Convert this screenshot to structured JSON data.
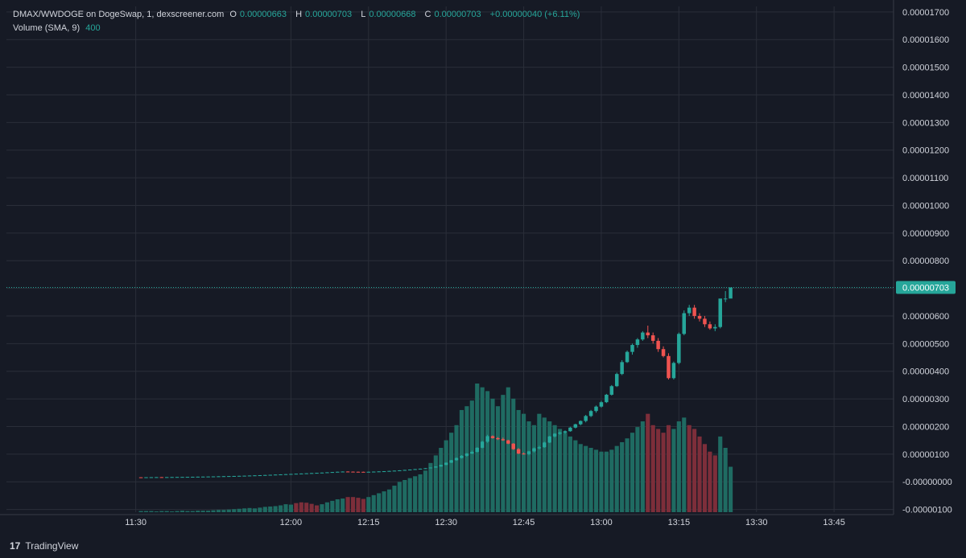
{
  "legend": {
    "title": "DMAX/WWDOGE on DogeSwap, 1, dexscreener.com",
    "o_label": "O",
    "o_value": "0.00000663",
    "h_label": "H",
    "h_value": "0.00000703",
    "l_label": "L",
    "l_value": "0.00000668",
    "c_label": "C",
    "c_value": "0.00000703",
    "change": "+0.00000040 (+6.11%)",
    "volume_label": "Volume (SMA, 9)",
    "volume_value": "400"
  },
  "footer": {
    "brand": "TradingView",
    "logo_icon": "tradingview-logo-icon"
  },
  "colors": {
    "bg": "#161a25",
    "up": "#26a69a",
    "down": "#ef5350",
    "grid": "#2a2e39",
    "text": "#d1d4dc",
    "up_vol": "#1f6b62",
    "down_vol": "#7d2e3a"
  },
  "chart_data": {
    "type": "candlestick",
    "y_tick_labels": [
      "0.00001700",
      "0.00001600",
      "0.00001500",
      "0.00001400",
      "0.00001300",
      "0.00001200",
      "0.00001100",
      "0.00001000",
      "0.00000900",
      "0.00000800",
      "0.00000700",
      "0.00000600",
      "0.00000500",
      "0.00000400",
      "0.00000300",
      "0.00000200",
      "0.00000100",
      "-0.00000000",
      "-0.00000100"
    ],
    "y_tick_values": [
      1.7e-05,
      1.6e-05,
      1.5e-05,
      1.4e-05,
      1.3e-05,
      1.2e-05,
      1.1e-05,
      1e-05,
      9e-06,
      8e-06,
      7e-06,
      6e-06,
      5e-06,
      4e-06,
      3e-06,
      2e-06,
      1e-06,
      0,
      -1e-06
    ],
    "ylim": [
      -1.1e-06,
      1.72e-05
    ],
    "x_tick_labels": [
      "11:30",
      "12:00",
      "12:15",
      "12:30",
      "12:45",
      "13:00",
      "13:15",
      "13:30",
      "13:45"
    ],
    "x_tick_values": [
      690,
      720,
      735,
      750,
      765,
      780,
      795,
      810,
      825
    ],
    "xlim": [
      665,
      836.5
    ],
    "last_price_label": "0.00000703",
    "last_price": 7.03e-06,
    "grid": true,
    "ohlc": [
      [
        691,
        1.62e-07,
        1.65e-07,
        1.55e-07,
        1.6e-07
      ],
      [
        692,
        1.6e-07,
        1.66e-07,
        1.58e-07,
        1.64e-07
      ],
      [
        693,
        1.64e-07,
        1.68e-07,
        1.6e-07,
        1.66e-07
      ],
      [
        694,
        1.66e-07,
        1.7e-07,
        1.62e-07,
        1.68e-07
      ],
      [
        695,
        1.68e-07,
        1.71e-07,
        1.63e-07,
        1.65e-07
      ],
      [
        696,
        1.65e-07,
        1.7e-07,
        1.63e-07,
        1.69e-07
      ],
      [
        697,
        1.69e-07,
        1.74e-07,
        1.66e-07,
        1.72e-07
      ],
      [
        698,
        1.72e-07,
        1.76e-07,
        1.69e-07,
        1.74e-07
      ],
      [
        699,
        1.74e-07,
        1.78e-07,
        1.71e-07,
        1.76e-07
      ],
      [
        700,
        1.76e-07,
        1.8e-07,
        1.73e-07,
        1.78e-07
      ],
      [
        701,
        1.78e-07,
        1.83e-07,
        1.75e-07,
        1.81e-07
      ],
      [
        702,
        1.81e-07,
        1.86e-07,
        1.78e-07,
        1.84e-07
      ],
      [
        703,
        1.84e-07,
        1.89e-07,
        1.81e-07,
        1.87e-07
      ],
      [
        704,
        1.87e-07,
        1.92e-07,
        1.84e-07,
        1.9e-07
      ],
      [
        705,
        1.9e-07,
        1.96e-07,
        1.87e-07,
        1.94e-07
      ],
      [
        706,
        1.94e-07,
        2e-07,
        1.9e-07,
        1.98e-07
      ],
      [
        707,
        1.98e-07,
        2.05e-07,
        1.95e-07,
        2.02e-07
      ],
      [
        708,
        2.02e-07,
        2.08e-07,
        1.99e-07,
        2.06e-07
      ],
      [
        709,
        2.06e-07,
        2.12e-07,
        2.03e-07,
        2.1e-07
      ],
      [
        710,
        2.1e-07,
        2.17e-07,
        2.07e-07,
        2.15e-07
      ],
      [
        711,
        2.15e-07,
        2.22e-07,
        2.12e-07,
        2.2e-07
      ],
      [
        712,
        2.2e-07,
        2.28e-07,
        2.17e-07,
        2.26e-07
      ],
      [
        713,
        2.26e-07,
        2.34e-07,
        2.22e-07,
        2.32e-07
      ],
      [
        714,
        2.32e-07,
        2.4e-07,
        2.28e-07,
        2.38e-07
      ],
      [
        715,
        2.38e-07,
        2.47e-07,
        2.34e-07,
        2.45e-07
      ],
      [
        716,
        2.45e-07,
        2.54e-07,
        2.4e-07,
        2.52e-07
      ],
      [
        717,
        2.52e-07,
        2.62e-07,
        2.48e-07,
        2.6e-07
      ],
      [
        718,
        2.6e-07,
        2.7e-07,
        2.56e-07,
        2.68e-07
      ],
      [
        719,
        2.68e-07,
        2.78e-07,
        2.63e-07,
        2.75e-07
      ],
      [
        720,
        2.75e-07,
        2.86e-07,
        2.7e-07,
        2.83e-07
      ],
      [
        721,
        2.83e-07,
        2.94e-07,
        2.78e-07,
        2.91e-07
      ],
      [
        722,
        2.91e-07,
        3.02e-07,
        2.86e-07,
        2.99e-07
      ],
      [
        723,
        2.99e-07,
        3.1e-07,
        2.93e-07,
        3.07e-07
      ],
      [
        724,
        3.07e-07,
        3.18e-07,
        3.01e-07,
        3.15e-07
      ],
      [
        725,
        3.15e-07,
        3.26e-07,
        3.1e-07,
        3.23e-07
      ],
      [
        726,
        3.23e-07,
        3.35e-07,
        3.18e-07,
        3.32e-07
      ],
      [
        727,
        3.32e-07,
        3.45e-07,
        3.27e-07,
        3.42e-07
      ],
      [
        728,
        3.42e-07,
        3.55e-07,
        3.37e-07,
        3.52e-07
      ],
      [
        729,
        3.52e-07,
        3.65e-07,
        3.47e-07,
        3.62e-07
      ],
      [
        730,
        3.62e-07,
        3.75e-07,
        3.57e-07,
        3.7e-07
      ],
      [
        731,
        3.7e-07,
        3.8e-07,
        3.6e-07,
        3.66e-07
      ],
      [
        732,
        3.66e-07,
        3.74e-07,
        3.58e-07,
        3.62e-07
      ],
      [
        733,
        3.62e-07,
        3.7e-07,
        3.55e-07,
        3.6e-07
      ],
      [
        734,
        3.6e-07,
        3.67e-07,
        3.52e-07,
        3.58e-07
      ],
      [
        735,
        3.58e-07,
        3.66e-07,
        3.52e-07,
        3.62e-07
      ],
      [
        736,
        3.62e-07,
        3.72e-07,
        3.56e-07,
        3.68e-07
      ],
      [
        737,
        3.68e-07,
        3.78e-07,
        3.62e-07,
        3.75e-07
      ],
      [
        738,
        3.75e-07,
        3.86e-07,
        3.69e-07,
        3.82e-07
      ],
      [
        739,
        3.82e-07,
        3.96e-07,
        3.76e-07,
        3.92e-07
      ],
      [
        740,
        3.92e-07,
        4.06e-07,
        3.86e-07,
        4.02e-07
      ],
      [
        741,
        4.02e-07,
        4.18e-07,
        3.96e-07,
        4.14e-07
      ],
      [
        742,
        4.14e-07,
        4.32e-07,
        4.08e-07,
        4.28e-07
      ],
      [
        743,
        4.28e-07,
        4.46e-07,
        4.22e-07,
        4.42e-07
      ],
      [
        744,
        4.42e-07,
        4.62e-07,
        4.36e-07,
        4.58e-07
      ],
      [
        745,
        4.58e-07,
        4.78e-07,
        4.52e-07,
        4.74e-07
      ],
      [
        746,
        4.74e-07,
        4.95e-07,
        4.68e-07,
        4.9e-07
      ],
      [
        747,
        4.9e-07,
        5.2e-07,
        4.85e-07,
        5.15e-07
      ],
      [
        748,
        5.15e-07,
        5.6e-07,
        5.1e-07,
        5.52e-07
      ],
      [
        749,
        5.52e-07,
        6.2e-07,
        5.45e-07,
        6.1e-07
      ],
      [
        750,
        6.1e-07,
        7e-07,
        6e-07,
        6.9e-07
      ],
      [
        751,
        6.9e-07,
        7.9e-07,
        6.8e-07,
        7.8e-07
      ],
      [
        752,
        7.8e-07,
        8.8e-07,
        7.6e-07,
        8.6e-07
      ],
      [
        753,
        8.6e-07,
        9.65e-07,
        8.4e-07,
        9.4e-07
      ],
      [
        754,
        9.4e-07,
        1.04e-06,
        9.05e-07,
        1.02e-06
      ],
      [
        755,
        1.02e-06,
        1.13e-06,
        1e-06,
        1.08e-06
      ],
      [
        756,
        1.08e-06,
        1.25e-06,
        1.06e-06,
        1.23e-06
      ],
      [
        757,
        1.23e-06,
        1.48e-06,
        1.21e-06,
        1.45e-06
      ],
      [
        758,
        1.45e-06,
        1.7e-06,
        1.41e-06,
        1.65e-06
      ],
      [
        759,
        1.65e-06,
        1.68e-06,
        1.56e-06,
        1.58e-06
      ],
      [
        760,
        1.58e-06,
        1.62e-06,
        1.51e-06,
        1.54e-06
      ],
      [
        761,
        1.54e-06,
        1.6e-06,
        1.48e-06,
        1.5e-06
      ],
      [
        762,
        1.5e-06,
        1.52e-06,
        1.36e-06,
        1.38e-06
      ],
      [
        763,
        1.38e-06,
        1.4e-06,
        1.15e-06,
        1.18e-06
      ],
      [
        764,
        1.18e-06,
        1.22e-06,
        1e-06,
        1.02e-06
      ],
      [
        765,
        1.02e-06,
        1.06e-06,
        9.8e-07,
        1e-06
      ],
      [
        766,
        1e-06,
        1.12e-06,
        9.6e-07,
        1.1e-06
      ],
      [
        767,
        1.1e-06,
        1.24e-06,
        1.06e-06,
        1.21e-06
      ],
      [
        768,
        1.21e-06,
        1.3e-06,
        1.17e-06,
        1.25e-06
      ],
      [
        769,
        1.25e-06,
        1.45e-06,
        1.23e-06,
        1.42e-06
      ],
      [
        770,
        1.42e-06,
        1.66e-06,
        1.4e-06,
        1.64e-06
      ],
      [
        771,
        1.64e-06,
        1.76e-06,
        1.6e-06,
        1.74e-06
      ],
      [
        772,
        1.74e-06,
        1.82e-06,
        1.7e-06,
        1.78e-06
      ],
      [
        773,
        1.78e-06,
        1.86e-06,
        1.73e-06,
        1.83e-06
      ],
      [
        774,
        1.83e-06,
        1.99e-06,
        1.81e-06,
        1.96e-06
      ],
      [
        775,
        1.96e-06,
        2.1e-06,
        1.93e-06,
        2.08e-06
      ],
      [
        776,
        2.08e-06,
        2.22e-06,
        2.04e-06,
        2.2e-06
      ],
      [
        777,
        2.2e-06,
        2.42e-06,
        2.15e-06,
        2.38e-06
      ],
      [
        778,
        2.38e-06,
        2.6e-06,
        2.34e-06,
        2.56e-06
      ],
      [
        779,
        2.56e-06,
        2.76e-06,
        2.5e-06,
        2.72e-06
      ],
      [
        780,
        2.72e-06,
        2.93e-06,
        2.68e-06,
        2.88e-06
      ],
      [
        781,
        2.88e-06,
        3.18e-06,
        2.85e-06,
        3.15e-06
      ],
      [
        782,
        3.15e-06,
        3.5e-06,
        3.12e-06,
        3.46e-06
      ],
      [
        783,
        3.46e-06,
        3.95e-06,
        3.43e-06,
        3.9e-06
      ],
      [
        784,
        3.9e-06,
        4.4e-06,
        3.86e-06,
        4.33e-06
      ],
      [
        785,
        4.33e-06,
        4.75e-06,
        4.3e-06,
        4.7e-06
      ],
      [
        786,
        4.7e-06,
        5e-06,
        4.6e-06,
        4.95e-06
      ],
      [
        787,
        4.95e-06,
        5.2e-06,
        4.85e-06,
        5.15e-06
      ],
      [
        788,
        5.15e-06,
        5.45e-06,
        5.1e-06,
        5.4e-06
      ],
      [
        789,
        5.4e-06,
        5.65e-06,
        5.2e-06,
        5.3e-06
      ],
      [
        790,
        5.3e-06,
        5.4e-06,
        5e-06,
        5.1e-06
      ],
      [
        791,
        5.1e-06,
        5.2e-06,
        4.7e-06,
        4.8e-06
      ],
      [
        792,
        4.8e-06,
        4.9e-06,
        4.5e-06,
        4.55e-06
      ],
      [
        793,
        4.55e-06,
        4.65e-06,
        3.7e-06,
        3.75e-06
      ],
      [
        794,
        3.75e-06,
        4.35e-06,
        3.7e-06,
        4.3e-06
      ],
      [
        795,
        4.3e-06,
        5.4e-06,
        4.25e-06,
        5.35e-06
      ],
      [
        796,
        5.35e-06,
        6.2e-06,
        5.3e-06,
        6.1e-06
      ],
      [
        797,
        6.1e-06,
        6.4e-06,
        6e-06,
        6.3e-06
      ],
      [
        798,
        6.3e-06,
        6.4e-06,
        5.9e-06,
        6e-06
      ],
      [
        799,
        6e-06,
        6.1e-06,
        5.8e-06,
        5.9e-06
      ],
      [
        800,
        5.9e-06,
        6e-06,
        5.6e-06,
        5.7e-06
      ],
      [
        801,
        5.7e-06,
        5.8e-06,
        5.5e-06,
        5.55e-06
      ],
      [
        802,
        5.55e-06,
        5.7e-06,
        5.45e-06,
        5.6e-06
      ],
      [
        803,
        5.6e-06,
        6.6e-06,
        5.55e-06,
        6.63e-06
      ],
      [
        804,
        6.63e-06,
        6.9e-06,
        6.5e-06,
        6.63e-06
      ],
      [
        805,
        6.63e-06,
        7.03e-06,
        6.68e-06,
        7.03e-06
      ]
    ],
    "volume": [
      [
        691,
        3,
        1
      ],
      [
        692,
        3,
        1
      ],
      [
        693,
        3,
        1
      ],
      [
        694,
        2,
        1
      ],
      [
        695,
        3,
        1
      ],
      [
        696,
        3,
        1
      ],
      [
        697,
        2,
        1
      ],
      [
        698,
        3,
        1
      ],
      [
        699,
        4,
        1
      ],
      [
        700,
        3,
        1
      ],
      [
        701,
        3,
        1
      ],
      [
        702,
        4,
        1
      ],
      [
        703,
        4,
        1
      ],
      [
        704,
        4,
        1
      ],
      [
        705,
        5,
        1
      ],
      [
        706,
        6,
        1
      ],
      [
        707,
        6,
        1
      ],
      [
        708,
        7,
        1
      ],
      [
        709,
        8,
        1
      ],
      [
        710,
        9,
        1
      ],
      [
        711,
        10,
        1
      ],
      [
        712,
        11,
        1
      ],
      [
        713,
        10,
        1
      ],
      [
        714,
        12,
        1
      ],
      [
        715,
        14,
        1
      ],
      [
        716,
        15,
        1
      ],
      [
        717,
        16,
        1
      ],
      [
        718,
        18,
        1
      ],
      [
        719,
        21,
        1
      ],
      [
        720,
        20,
        1
      ],
      [
        721,
        24,
        0
      ],
      [
        722,
        26,
        0
      ],
      [
        723,
        25,
        0
      ],
      [
        724,
        22,
        0
      ],
      [
        725,
        18,
        0
      ],
      [
        726,
        21,
        1
      ],
      [
        727,
        26,
        1
      ],
      [
        728,
        30,
        1
      ],
      [
        729,
        34,
        1
      ],
      [
        730,
        36,
        1
      ],
      [
        731,
        40,
        0
      ],
      [
        732,
        40,
        0
      ],
      [
        733,
        38,
        0
      ],
      [
        734,
        35,
        0
      ],
      [
        735,
        40,
        1
      ],
      [
        736,
        45,
        1
      ],
      [
        737,
        50,
        1
      ],
      [
        738,
        55,
        1
      ],
      [
        739,
        60,
        1
      ],
      [
        740,
        70,
        1
      ],
      [
        741,
        80,
        1
      ],
      [
        742,
        85,
        1
      ],
      [
        743,
        90,
        1
      ],
      [
        744,
        95,
        1
      ],
      [
        745,
        100,
        1
      ],
      [
        746,
        110,
        1
      ],
      [
        747,
        130,
        1
      ],
      [
        748,
        150,
        1
      ],
      [
        749,
        170,
        1
      ],
      [
        750,
        190,
        1
      ],
      [
        751,
        210,
        1
      ],
      [
        752,
        230,
        1
      ],
      [
        753,
        270,
        1
      ],
      [
        754,
        280,
        1
      ],
      [
        755,
        295,
        1
      ],
      [
        756,
        340,
        1
      ],
      [
        757,
        330,
        1
      ],
      [
        758,
        320,
        1
      ],
      [
        759,
        300,
        1
      ],
      [
        760,
        280,
        1
      ],
      [
        761,
        310,
        1
      ],
      [
        762,
        330,
        1
      ],
      [
        763,
        300,
        1
      ],
      [
        764,
        270,
        1
      ],
      [
        765,
        260,
        1
      ],
      [
        766,
        240,
        1
      ],
      [
        767,
        230,
        1
      ],
      [
        768,
        260,
        1
      ],
      [
        769,
        250,
        1
      ],
      [
        770,
        240,
        1
      ],
      [
        771,
        230,
        1
      ],
      [
        772,
        220,
        1
      ],
      [
        773,
        210,
        1
      ],
      [
        774,
        200,
        1
      ],
      [
        775,
        190,
        1
      ],
      [
        776,
        180,
        1
      ],
      [
        777,
        175,
        1
      ],
      [
        778,
        170,
        1
      ],
      [
        779,
        165,
        1
      ],
      [
        780,
        160,
        1
      ],
      [
        781,
        160,
        1
      ],
      [
        782,
        165,
        1
      ],
      [
        783,
        175,
        1
      ],
      [
        784,
        185,
        1
      ],
      [
        785,
        195,
        1
      ],
      [
        786,
        210,
        1
      ],
      [
        787,
        225,
        1
      ],
      [
        788,
        240,
        1
      ],
      [
        789,
        260,
        0
      ],
      [
        790,
        230,
        0
      ],
      [
        791,
        220,
        0
      ],
      [
        792,
        210,
        0
      ],
      [
        793,
        230,
        0
      ],
      [
        794,
        220,
        1
      ],
      [
        795,
        240,
        1
      ],
      [
        796,
        250,
        1
      ],
      [
        797,
        230,
        0
      ],
      [
        798,
        220,
        0
      ],
      [
        799,
        200,
        0
      ],
      [
        800,
        180,
        0
      ],
      [
        801,
        160,
        0
      ],
      [
        802,
        150,
        0
      ],
      [
        803,
        200,
        1
      ],
      [
        804,
        170,
        1
      ],
      [
        805,
        120,
        1
      ]
    ]
  }
}
